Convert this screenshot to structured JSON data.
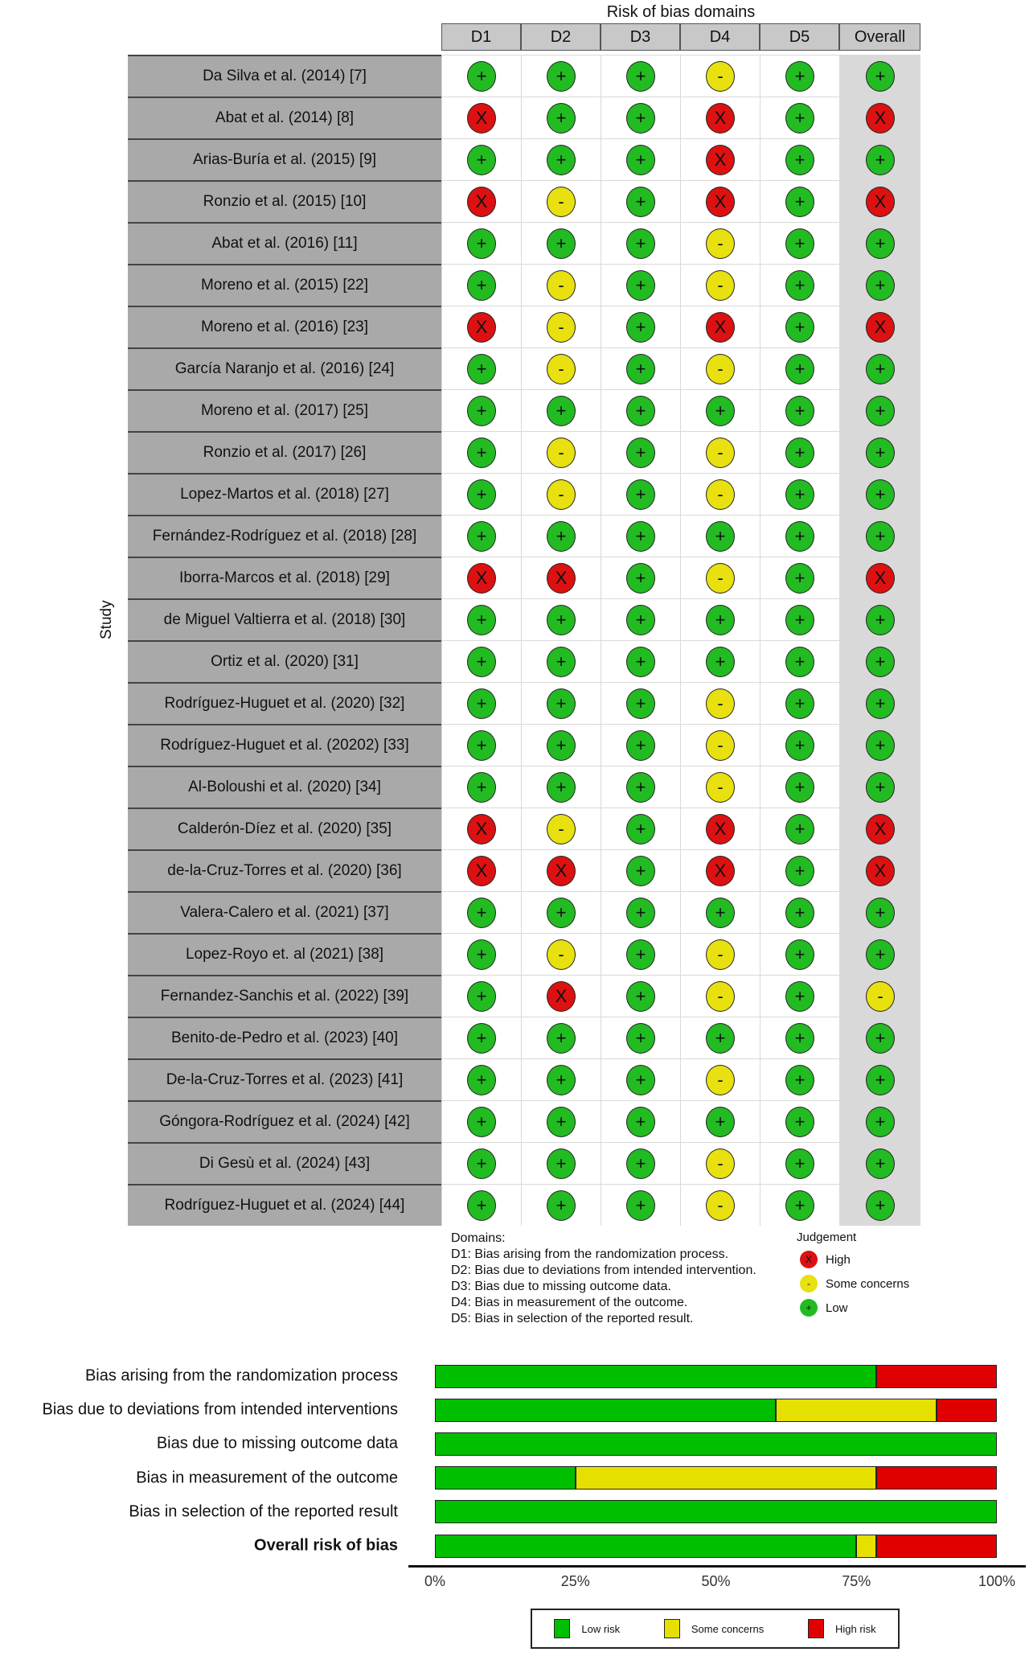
{
  "title": "Risk of bias domains",
  "columns": [
    "D1",
    "D2",
    "D3",
    "D4",
    "D5",
    "Overall"
  ],
  "y_label": "Study",
  "colors": {
    "low": "#22bb22",
    "some": "#e8e00f",
    "high": "#dd1111",
    "bar_low": "#00bf00",
    "bar_some": "#e5e000",
    "bar_high": "#e00000"
  },
  "symbols": {
    "low": "+",
    "some": "-",
    "high": "X"
  },
  "studies": [
    {
      "name": "Da Silva et al. (2014) [7]",
      "j": [
        "low",
        "low",
        "low",
        "some",
        "low",
        "low"
      ]
    },
    {
      "name": "Abat et al. (2014) [8]",
      "j": [
        "high",
        "low",
        "low",
        "high",
        "low",
        "high"
      ]
    },
    {
      "name": "Arias-Buría et al. (2015) [9]",
      "j": [
        "low",
        "low",
        "low",
        "high",
        "low",
        "low"
      ]
    },
    {
      "name": "Ronzio et al. (2015) [10]",
      "j": [
        "high",
        "some",
        "low",
        "high",
        "low",
        "high"
      ]
    },
    {
      "name": "Abat et al. (2016) [11]",
      "j": [
        "low",
        "low",
        "low",
        "some",
        "low",
        "low"
      ]
    },
    {
      "name": "Moreno et al. (2015) [22]",
      "j": [
        "low",
        "some",
        "low",
        "some",
        "low",
        "low"
      ]
    },
    {
      "name": "Moreno et al. (2016) [23]",
      "j": [
        "high",
        "some",
        "low",
        "high",
        "low",
        "high"
      ]
    },
    {
      "name": "García Naranjo et al. (2016) [24]",
      "j": [
        "low",
        "some",
        "low",
        "some",
        "low",
        "low"
      ]
    },
    {
      "name": "Moreno et al. (2017) [25]",
      "j": [
        "low",
        "low",
        "low",
        "low",
        "low",
        "low"
      ]
    },
    {
      "name": "Ronzio et al. (2017) [26]",
      "j": [
        "low",
        "some",
        "low",
        "some",
        "low",
        "low"
      ]
    },
    {
      "name": "Lopez-Martos et al. (2018) [27]",
      "j": [
        "low",
        "some",
        "low",
        "some",
        "low",
        "low"
      ]
    },
    {
      "name": "Fernández-Rodríguez et al. (2018) [28]",
      "j": [
        "low",
        "low",
        "low",
        "low",
        "low",
        "low"
      ]
    },
    {
      "name": "Iborra-Marcos et al. (2018) [29]",
      "j": [
        "high",
        "high",
        "low",
        "some",
        "low",
        "high"
      ]
    },
    {
      "name": "de Miguel Valtierra et al. (2018) [30]",
      "j": [
        "low",
        "low",
        "low",
        "low",
        "low",
        "low"
      ]
    },
    {
      "name": "Ortiz et al. (2020) [31]",
      "j": [
        "low",
        "low",
        "low",
        "low",
        "low",
        "low"
      ]
    },
    {
      "name": "Rodríguez-Huguet et al. (2020) [32]",
      "j": [
        "low",
        "low",
        "low",
        "some",
        "low",
        "low"
      ]
    },
    {
      "name": "Rodríguez-Huguet et al. (20202) [33]",
      "j": [
        "low",
        "low",
        "low",
        "some",
        "low",
        "low"
      ]
    },
    {
      "name": "Al-Boloushi et al. (2020) [34]",
      "j": [
        "low",
        "low",
        "low",
        "some",
        "low",
        "low"
      ]
    },
    {
      "name": "Calderón-Díez et al. (2020) [35]",
      "j": [
        "high",
        "some",
        "low",
        "high",
        "low",
        "high"
      ]
    },
    {
      "name": "de-la-Cruz-Torres et al. (2020) [36]",
      "j": [
        "high",
        "high",
        "low",
        "high",
        "low",
        "high"
      ]
    },
    {
      "name": "Valera-Calero et al. (2021) [37]",
      "j": [
        "low",
        "low",
        "low",
        "low",
        "low",
        "low"
      ]
    },
    {
      "name": "Lopez-Royo et. al (2021) [38]",
      "j": [
        "low",
        "some",
        "low",
        "some",
        "low",
        "low"
      ]
    },
    {
      "name": "Fernandez-Sanchis et al. (2022) [39]",
      "j": [
        "low",
        "high",
        "low",
        "some",
        "low",
        "some"
      ]
    },
    {
      "name": "Benito-de-Pedro et al. (2023) [40]",
      "j": [
        "low",
        "low",
        "low",
        "low",
        "low",
        "low"
      ]
    },
    {
      "name": "De-la-Cruz-Torres et al. (2023) [41]",
      "j": [
        "low",
        "low",
        "low",
        "some",
        "low",
        "low"
      ]
    },
    {
      "name": "Góngora-Rodríguez et al. (2024) [42]",
      "j": [
        "low",
        "low",
        "low",
        "low",
        "low",
        "low"
      ]
    },
    {
      "name": "Di Gesù et al. (2024) [43]",
      "j": [
        "low",
        "low",
        "low",
        "some",
        "low",
        "low"
      ]
    },
    {
      "name": "Rodríguez-Huguet et al. (2024) [44]",
      "j": [
        "low",
        "low",
        "low",
        "some",
        "low",
        "low"
      ]
    }
  ],
  "domains_legend": {
    "heading": "Domains:",
    "items": [
      "D1: Bias arising from the randomization process.",
      "D2: Bias due to deviations from intended intervention.",
      "D3: Bias due to missing outcome data.",
      "D4: Bias in measurement of the outcome.",
      "D5: Bias in selection of the reported result."
    ]
  },
  "judgement_legend": {
    "heading": "Judgement",
    "items": [
      {
        "key": "high",
        "label": "High"
      },
      {
        "key": "some",
        "label": "Some concerns"
      },
      {
        "key": "low",
        "label": "Low"
      }
    ]
  },
  "chart_data": {
    "type": "bar",
    "stacked": true,
    "orientation": "horizontal",
    "categories": [
      "Bias arising from the randomization process",
      "Bias due to deviations from intended interventions",
      "Bias due to missing outcome data",
      "Bias in measurement of the outcome",
      "Bias in selection of the reported result",
      "Overall risk of bias"
    ],
    "series": [
      {
        "name": "Low risk",
        "key": "low",
        "values": [
          78.6,
          60.7,
          100,
          25.0,
          100,
          75.0
        ]
      },
      {
        "name": "Some concerns",
        "key": "some",
        "values": [
          0,
          28.6,
          0,
          53.6,
          0,
          3.6
        ]
      },
      {
        "name": "High risk",
        "key": "high",
        "values": [
          21.4,
          10.7,
          0,
          21.4,
          0,
          21.4
        ]
      }
    ],
    "xlim": [
      0,
      100
    ],
    "xticks": [
      "0%",
      "25%",
      "50%",
      "75%",
      "100%"
    ],
    "legend_position": "bottom",
    "grid": false
  }
}
